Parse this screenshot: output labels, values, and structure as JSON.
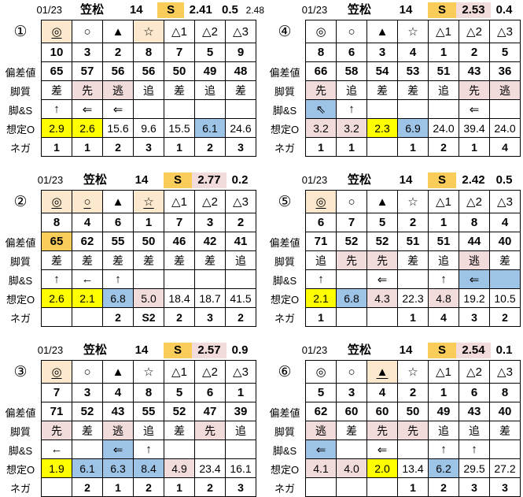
{
  "colors": {
    "gold": "#FACD5A",
    "cream": "#FCE8CD",
    "pink": "#F2DCDB",
    "blue": "#9DC3E6",
    "yellow": "#FFFF00"
  },
  "row_labels": {
    "hensachi": "偏差値",
    "kyakushitsu": "脚質",
    "kyaku_s": "脚&S",
    "soutei_o": "想定O",
    "nega": "ネガ"
  },
  "tables": [
    {
      "id": "①",
      "header": {
        "date": "01/23",
        "track": "笠松",
        "race": "14",
        "mark": "S",
        "mark_bg": "gold",
        "odds": "2.41",
        "diff": "0.5",
        "extra": "2.48"
      },
      "cols": [
        {
          "sym": "◎",
          "sym_bg": "cream",
          "sym_u": true,
          "num": "10",
          "hen": "65",
          "sty": "差",
          "arw": "↑",
          "odd": "2.9",
          "odd_bg": "yellow",
          "neg": "1"
        },
        {
          "sym": "○",
          "num": "3",
          "hen": "57",
          "sty": "先",
          "sty_bg": "pink",
          "arw": "⇐",
          "odd": "2.6",
          "odd_bg": "yellow",
          "neg": "1"
        },
        {
          "sym": "▲",
          "num": "2",
          "hen": "56",
          "sty": "逃",
          "sty_bg": "pink",
          "arw": "⇐",
          "odd": "15.6",
          "neg": "2"
        },
        {
          "sym": "☆",
          "sym_bg": "cream",
          "num": "8",
          "hen": "56",
          "sty": "追",
          "arw": "",
          "odd": "9.6",
          "neg": "3"
        },
        {
          "sym": "△1",
          "num": "7",
          "hen": "50",
          "sty": "差",
          "arw": "",
          "odd": "15.5",
          "neg": "1"
        },
        {
          "sym": "△2",
          "num": "5",
          "hen": "49",
          "sty": "追",
          "arw": "",
          "odd": "6.1",
          "odd_bg": "blue",
          "neg": "2"
        },
        {
          "sym": "△3",
          "num": "9",
          "hen": "48",
          "sty": "差",
          "arw": "",
          "odd": "24.6",
          "neg": "3"
        }
      ]
    },
    {
      "id": "②",
      "header": {
        "date": "01/23",
        "track": "笠松",
        "race": "14",
        "mark": "S",
        "mark_bg": "gold",
        "odds": "2.77",
        "odds_bg": "pink",
        "diff": "0.2",
        "extra": ""
      },
      "cols": [
        {
          "sym": "◎",
          "sym_bg": "cream",
          "sym_u": true,
          "num": "8",
          "hen": "65",
          "hen_bg": "gold",
          "sty": "差",
          "arw": "↑",
          "odd": "2.6",
          "odd_bg": "yellow",
          "neg": ""
        },
        {
          "sym": "○",
          "sym_bg": "cream",
          "sym_u": true,
          "num": "4",
          "hen": "62",
          "sty": "差",
          "arw": "←",
          "odd": "2.1",
          "odd_bg": "yellow",
          "neg": ""
        },
        {
          "sym": "▲",
          "num": "6",
          "hen": "55",
          "sty": "差",
          "arw": "↑",
          "odd": "6.8",
          "odd_bg": "blue",
          "neg": "2"
        },
        {
          "sym": "☆",
          "sym_bg": "cream",
          "sym_u": true,
          "num": "1",
          "hen": "50",
          "sty": "差",
          "arw": "",
          "odd": "5.0",
          "odd_bg": "pink",
          "neg": "S2"
        },
        {
          "sym": "△1",
          "num": "7",
          "hen": "46",
          "sty": "差",
          "arw": "",
          "odd": "18.4",
          "neg": "2"
        },
        {
          "sym": "△2",
          "num": "3",
          "hen": "42",
          "sty": "差",
          "arw": "",
          "odd": "18.7",
          "neg": "3"
        },
        {
          "sym": "△3",
          "num": "2",
          "hen": "41",
          "sty": "追",
          "arw": "",
          "odd": "41.5",
          "neg": "2"
        }
      ]
    },
    {
      "id": "③",
      "header": {
        "date": "01/23",
        "track": "笠松",
        "race": "14",
        "mark": "S",
        "mark_bg": "gold",
        "odds": "2.57",
        "odds_bg": "pink",
        "diff": "0.9",
        "extra": ""
      },
      "cols": [
        {
          "sym": "◎",
          "sym_bg": "cream",
          "sym_u": true,
          "num": "7",
          "hen": "71",
          "sty": "先",
          "sty_bg": "pink",
          "arw": "←",
          "odd": "1.9",
          "odd_bg": "yellow",
          "neg": ""
        },
        {
          "sym": "○",
          "num": "3",
          "hen": "52",
          "sty": "差",
          "arw": "",
          "odd": "6.1",
          "odd_bg": "blue",
          "neg": "2"
        },
        {
          "sym": "▲",
          "num": "4",
          "hen": "43",
          "sty": "逃",
          "sty_bg": "pink",
          "arw": "⇐",
          "arw_bg": "blue",
          "odd": "6.3",
          "odd_bg": "blue",
          "neg": "1"
        },
        {
          "sym": "☆",
          "num": "8",
          "hen": "55",
          "sty": "追",
          "arw": "↑",
          "odd": "8.4",
          "odd_bg": "blue",
          "neg": "2"
        },
        {
          "sym": "△1",
          "num": "5",
          "hen": "52",
          "sty": "差",
          "arw": "",
          "odd": "4.9",
          "odd_bg": "pink",
          "neg": "1"
        },
        {
          "sym": "△2",
          "num": "6",
          "hen": "47",
          "sty": "先",
          "sty_bg": "pink",
          "arw": "",
          "odd": "23.4",
          "neg": "2"
        },
        {
          "sym": "△3",
          "num": "1",
          "hen": "39",
          "sty": "追",
          "arw": "",
          "odd": "16.1",
          "neg": "3"
        }
      ]
    },
    {
      "id": "④",
      "header": {
        "date": "01/23",
        "track": "笠松",
        "race": "14",
        "mark": "S",
        "mark_bg": "gold",
        "odds": "2.53",
        "odds_bg": "pink",
        "diff": "0.4",
        "extra": ""
      },
      "cols": [
        {
          "sym": "◎",
          "num": "8",
          "hen": "66",
          "sty": "先",
          "sty_bg": "pink",
          "arw": "⇖",
          "arw_bg": "blue",
          "odd": "3.2",
          "odd_bg": "pink",
          "neg": "1"
        },
        {
          "sym": "○",
          "num": "6",
          "hen": "58",
          "sty": "追",
          "arw": "↑",
          "odd": "3.2",
          "odd_bg": "pink",
          "neg": "1"
        },
        {
          "sym": "▲",
          "num": "3",
          "hen": "54",
          "sty": "差",
          "arw": "",
          "odd": "2.3",
          "odd_bg": "yellow",
          "neg": ""
        },
        {
          "sym": "☆",
          "num": "4",
          "hen": "53",
          "sty": "差",
          "arw": "",
          "odd": "6.9",
          "odd_bg": "blue",
          "neg": "1"
        },
        {
          "sym": "△1",
          "num": "1",
          "hen": "51",
          "sty": "追",
          "arw": "",
          "odd": "24.0",
          "neg": "2"
        },
        {
          "sym": "△2",
          "num": "2",
          "hen": "43",
          "sty": "先",
          "sty_bg": "pink",
          "arw": "⇐",
          "odd": "39.4",
          "neg": "1"
        },
        {
          "sym": "△3",
          "num": "5",
          "hen": "36",
          "sty": "逃",
          "sty_bg": "pink",
          "arw": "",
          "odd": "24.0",
          "neg": "4"
        }
      ]
    },
    {
      "id": "⑤",
      "header": {
        "date": "01/23",
        "track": "笠松",
        "race": "14",
        "mark": "S",
        "mark_bg": "gold",
        "odds": "2.42",
        "diff": "0.5",
        "extra": ""
      },
      "cols": [
        {
          "sym": "◎",
          "sym_bg": "cream",
          "sym_u": true,
          "num": "6",
          "hen": "71",
          "sty": "追",
          "arw": "↑",
          "odd": "2.1",
          "odd_bg": "yellow",
          "neg": "1"
        },
        {
          "sym": "○",
          "num": "7",
          "hen": "52",
          "sty": "先",
          "sty_bg": "pink",
          "arw": "",
          "odd": "6.8",
          "odd_bg": "blue",
          "neg": ""
        },
        {
          "sym": "▲",
          "num": "5",
          "hen": "52",
          "sty": "先",
          "sty_bg": "pink",
          "arw": "⇐",
          "odd": "4.3",
          "odd_bg": "pink",
          "neg": ""
        },
        {
          "sym": "☆",
          "num": "2",
          "hen": "51",
          "sty": "差",
          "arw": "",
          "odd": "22.3",
          "neg": "1"
        },
        {
          "sym": "△1",
          "num": "1",
          "hen": "51",
          "sty": "追",
          "arw": "↑",
          "odd": "4.8",
          "odd_bg": "pink",
          "neg": "4"
        },
        {
          "sym": "△2",
          "num": "8",
          "hen": "44",
          "sty": "逃",
          "sty_bg": "pink",
          "arw": "⇐",
          "arw_bg": "blue",
          "odd": "19.2",
          "neg": "3"
        },
        {
          "sym": "△3",
          "num": "4",
          "hen": "40",
          "sty": "差",
          "arw": "",
          "arw_bg": "blue",
          "odd": "10.5",
          "neg": "2"
        }
      ]
    },
    {
      "id": "⑥",
      "header": {
        "date": "01/23",
        "track": "笠松",
        "race": "14",
        "mark": "S",
        "mark_bg": "gold",
        "odds": "2.54",
        "odds_bg": "pink",
        "diff": "0.1",
        "extra": ""
      },
      "cols": [
        {
          "sym": "◎",
          "num": "5",
          "hen": "62",
          "sty": "逃",
          "sty_bg": "pink",
          "arw": "⇐",
          "arw_bg": "blue",
          "odd": "4.1",
          "odd_bg": "pink",
          "neg": ""
        },
        {
          "sym": "○",
          "num": "3",
          "hen": "60",
          "sty": "差",
          "arw": "",
          "odd": "4.0",
          "odd_bg": "pink",
          "neg": ""
        },
        {
          "sym": "▲",
          "sym_bg": "cream",
          "sym_u": true,
          "num": "4",
          "hen": "60",
          "sty": "先",
          "sty_bg": "pink",
          "arw": "⇐",
          "odd": "2.0",
          "odd_bg": "yellow",
          "neg": ""
        },
        {
          "sym": "☆",
          "num": "2",
          "hen": "50",
          "sty": "先",
          "sty_bg": "pink",
          "arw": "",
          "odd": "13.4",
          "neg": "1"
        },
        {
          "sym": "△1",
          "num": "1",
          "hen": "49",
          "sty": "追",
          "arw": "↑",
          "odd": "6.2",
          "odd_bg": "blue",
          "neg": "2"
        },
        {
          "sym": "△2",
          "num": "6",
          "hen": "43",
          "sty": "追",
          "arw": "↑",
          "odd": "29.5",
          "neg": "3"
        },
        {
          "sym": "△3",
          "num": "8",
          "hen": "40",
          "sty": "差",
          "arw": "",
          "odd": "27.2",
          "neg": "3"
        }
      ]
    }
  ]
}
